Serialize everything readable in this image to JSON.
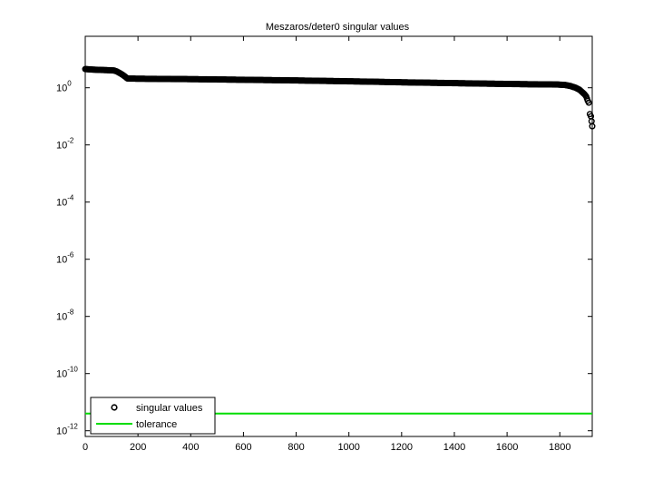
{
  "chart_data": {
    "type": "scatter",
    "title": "Meszaros/deter0 singular values",
    "xlabel": "",
    "ylabel": "",
    "xlim": [
      0,
      1923
    ],
    "ylim_log10": [
      -12.2,
      1.8
    ],
    "y_scale": "log",
    "x_ticks": [
      0,
      200,
      400,
      600,
      800,
      1000,
      1200,
      1400,
      1600,
      1800
    ],
    "y_ticks": [
      {
        "base": "10",
        "exp": "0",
        "log10": 0
      },
      {
        "base": "10",
        "exp": "-2",
        "log10": -2
      },
      {
        "base": "10",
        "exp": "-4",
        "log10": -4
      },
      {
        "base": "10",
        "exp": "-6",
        "log10": -6
      },
      {
        "base": "10",
        "exp": "-8",
        "log10": -8
      },
      {
        "base": "10",
        "exp": "-10",
        "log10": -10
      },
      {
        "base": "10",
        "exp": "-12",
        "log10": -12
      }
    ],
    "legend_position": "bottom-left",
    "series": [
      {
        "name": "singular values",
        "marker": "circle",
        "color": "#000000",
        "points": [
          [
            0,
            4.5
          ],
          [
            30,
            4.3
          ],
          [
            60,
            4.2
          ],
          [
            90,
            4.1
          ],
          [
            110,
            4.0
          ],
          [
            120,
            3.7
          ],
          [
            130,
            3.3
          ],
          [
            140,
            2.9
          ],
          [
            150,
            2.5
          ],
          [
            160,
            2.1
          ],
          [
            200,
            2.07
          ],
          [
            300,
            2.03
          ],
          [
            400,
            2.0
          ],
          [
            500,
            1.95
          ],
          [
            600,
            1.9
          ],
          [
            700,
            1.85
          ],
          [
            800,
            1.8
          ],
          [
            900,
            1.74
          ],
          [
            1000,
            1.68
          ],
          [
            1100,
            1.62
          ],
          [
            1200,
            1.55
          ],
          [
            1300,
            1.5
          ],
          [
            1400,
            1.45
          ],
          [
            1500,
            1.4
          ],
          [
            1600,
            1.36
          ],
          [
            1700,
            1.32
          ],
          [
            1790,
            1.3
          ],
          [
            1820,
            1.25
          ],
          [
            1840,
            1.15
          ],
          [
            1860,
            1.0
          ],
          [
            1875,
            0.85
          ],
          [
            1885,
            0.7
          ],
          [
            1893,
            0.6
          ],
          [
            1900,
            0.5
          ],
          [
            1906,
            0.35
          ],
          [
            1910,
            0.3
          ],
          [
            1914,
            0.12
          ],
          [
            1918,
            0.1
          ],
          [
            1923,
            0.045
          ]
        ]
      },
      {
        "name": "tolerance",
        "type": "line",
        "color": "#00dd00",
        "value": 4e-12
      }
    ]
  }
}
